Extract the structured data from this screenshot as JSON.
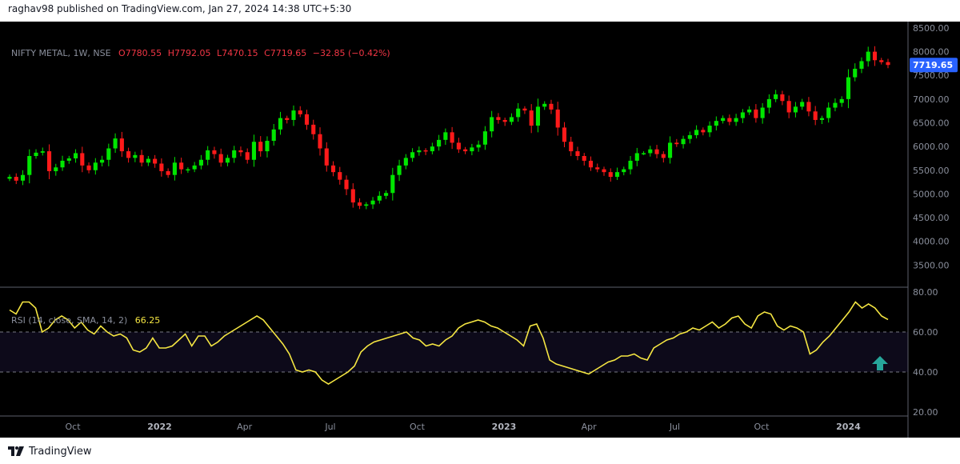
{
  "header": {
    "publisher": "raghav98 published on TradingView.com, Jan 27, 2024 14:38 UTC+5:30"
  },
  "footer": {
    "brand": "TradingView"
  },
  "colors": {
    "up": "#00e600",
    "down": "#ff1a1a",
    "rsi": "#f5e642",
    "price_tag": "#2962ff",
    "arrow": "#26a69a",
    "band": "#0d0a1a",
    "background": "#000000"
  },
  "chart_data": [
    {
      "type": "candlestick",
      "symbol_label": "NIFTY METAL, 1W, NSE",
      "ohlc": {
        "open": "O7780.55",
        "high": "H7792.05",
        "low": "L7470.15",
        "close": "C7719.65",
        "change": "−32.85 (−0.42%)"
      },
      "last_price": "7719.65",
      "y_axis_ticks": [
        "8500.00",
        "8000.00",
        "7500.00",
        "7000.00",
        "6500.00",
        "6000.00",
        "5500.00",
        "5000.00",
        "4500.00",
        "4000.00",
        "3500.00"
      ],
      "ylim": [
        3050,
        8550
      ],
      "x_axis_ticks": [
        {
          "label": "Oct",
          "date": "2021-10"
        },
        {
          "label": "2022",
          "date": "2022-01"
        },
        {
          "label": "Apr",
          "date": "2022-04"
        },
        {
          "label": "Jul",
          "date": "2022-07"
        },
        {
          "label": "Oct",
          "date": "2022-10"
        },
        {
          "label": "2023",
          "date": "2023-01"
        },
        {
          "label": "Apr",
          "date": "2023-04"
        },
        {
          "label": "Jul",
          "date": "2023-07"
        },
        {
          "label": "Oct",
          "date": "2023-10"
        },
        {
          "label": "2024",
          "date": "2024-01"
        }
      ],
      "weekly_close": [
        5360,
        5280,
        5400,
        5800,
        5870,
        5900,
        5480,
        5560,
        5700,
        5750,
        5860,
        5600,
        5500,
        5660,
        5720,
        5960,
        6170,
        5900,
        5760,
        5820,
        5660,
        5740,
        5640,
        5480,
        5400,
        5660,
        5520,
        5520,
        5600,
        5720,
        5920,
        5840,
        5660,
        5760,
        5920,
        5880,
        5720,
        6100,
        5900,
        6120,
        6360,
        6600,
        6560,
        6760,
        6680,
        6460,
        6260,
        5960,
        5600,
        5460,
        5300,
        5100,
        4820,
        4750,
        4780,
        4860,
        4960,
        5020,
        5400,
        5600,
        5760,
        5880,
        5920,
        5900,
        6000,
        6140,
        6300,
        6080,
        5940,
        5900,
        5980,
        6040,
        6320,
        6620,
        6560,
        6520,
        6620,
        6800,
        6760,
        6440,
        6840,
        6900,
        6780,
        6400,
        6100,
        5900,
        5800,
        5700,
        5560,
        5520,
        5460,
        5360,
        5460,
        5520,
        5700,
        5860,
        5860,
        5940,
        5840,
        5760,
        6080,
        6050,
        6160,
        6240,
        6350,
        6300,
        6440,
        6540,
        6600,
        6520,
        6600,
        6720,
        6780,
        6600,
        6820,
        7000,
        7100,
        6960,
        6720,
        6840,
        6940,
        6740,
        6560,
        6600,
        6820,
        6920,
        7000,
        7460,
        7640,
        7800,
        8000,
        7820,
        7780,
        7719.65
      ]
    },
    {
      "type": "line",
      "indicator_label": "RSI (14, close, SMA, 14, 2)",
      "value_label": "66.25",
      "y_axis_ticks": [
        "80.00",
        "60.00",
        "40.00",
        "20.00"
      ],
      "ylim": [
        18,
        82
      ],
      "bands": [
        40,
        60
      ],
      "values": [
        71,
        69,
        75,
        75,
        72,
        60,
        62,
        66,
        68,
        66,
        62,
        65,
        61,
        59,
        63,
        60,
        58,
        59,
        57,
        51,
        50,
        52,
        57,
        52,
        52,
        53,
        56,
        59,
        53,
        58,
        58,
        53,
        55,
        58,
        60,
        62,
        64,
        66,
        68,
        66,
        62,
        58,
        54,
        49,
        41,
        40,
        41,
        40,
        36,
        34,
        36,
        38,
        40,
        43,
        50,
        53,
        55,
        56,
        57,
        58,
        59,
        60,
        57,
        56,
        53,
        54,
        53,
        56,
        58,
        62,
        64,
        65,
        66,
        65,
        63,
        62,
        60,
        58,
        56,
        53,
        63,
        64,
        57,
        46,
        44,
        43,
        42,
        41,
        40,
        39,
        41,
        43,
        45,
        46,
        48,
        48,
        49,
        47,
        46,
        52,
        54,
        56,
        57,
        59,
        60,
        62,
        61,
        63,
        65,
        62,
        64,
        67,
        68,
        64,
        62,
        68,
        70,
        69,
        63,
        61,
        63,
        62,
        60,
        49,
        51,
        55,
        58,
        62,
        66,
        70,
        75,
        72,
        74,
        72,
        68,
        66.25
      ]
    }
  ]
}
